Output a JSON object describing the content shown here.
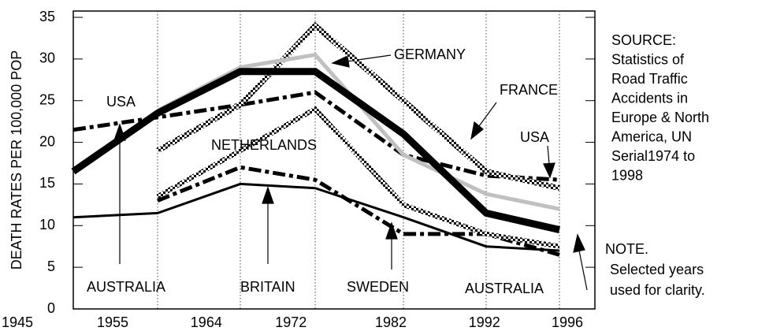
{
  "chart_data": {
    "type": "line",
    "y_label": "DEATH RATES PER 100,000 POP",
    "categories": [
      "1945",
      "1955",
      "1964",
      "1972",
      "1982",
      "1992",
      "1996"
    ],
    "ylim": [
      0,
      35
    ],
    "yticks": [
      0,
      5,
      10,
      15,
      20,
      25,
      30,
      35
    ],
    "grid": "x",
    "series": [
      {
        "name": "AUSTRALIA",
        "color": "#000000",
        "style": "solid",
        "values": [
          16.5,
          23.5,
          28.5,
          28.5,
          21,
          11.5,
          9.5
        ]
      },
      {
        "name": "GERMANY",
        "color": "#c0c0c0",
        "style": "solid",
        "values": [
          null,
          23.8,
          29,
          30.5,
          18.5,
          13.8,
          12
        ]
      },
      {
        "name": "FRANCE",
        "color": "#000000",
        "style": "dotted",
        "values": [
          null,
          19,
          24.5,
          34,
          25,
          16.5,
          14.5
        ]
      },
      {
        "name": "USA",
        "color": "#000000",
        "style": "dashdot",
        "values": [
          21.5,
          23,
          24.5,
          26,
          18.5,
          16,
          15.5
        ]
      },
      {
        "name": "NETHERLANDS",
        "color": "#000000",
        "style": "dotted",
        "values": [
          null,
          13.5,
          19,
          24,
          12.5,
          9,
          7.5
        ]
      },
      {
        "name": "SWEDEN",
        "color": "#000000",
        "style": "dashdot",
        "values": [
          null,
          13,
          17,
          15.5,
          9,
          9,
          6.5
        ]
      },
      {
        "name": "BRITAIN",
        "color": "#000000",
        "style": "solid",
        "values": [
          11,
          11.5,
          15,
          14.5,
          11,
          7.5,
          7
        ]
      }
    ],
    "annotations": [
      "USA",
      "AUSTRALIA"
    ],
    "source": [
      "SOURCE:",
      "Statistics of",
      "Road Traffic",
      "Accidents in",
      "Europe & North",
      "America, UN",
      "Serial1974 to",
      "1998"
    ],
    "note": [
      "NOTE.",
      "Selected years",
      "used for clarity."
    ]
  }
}
